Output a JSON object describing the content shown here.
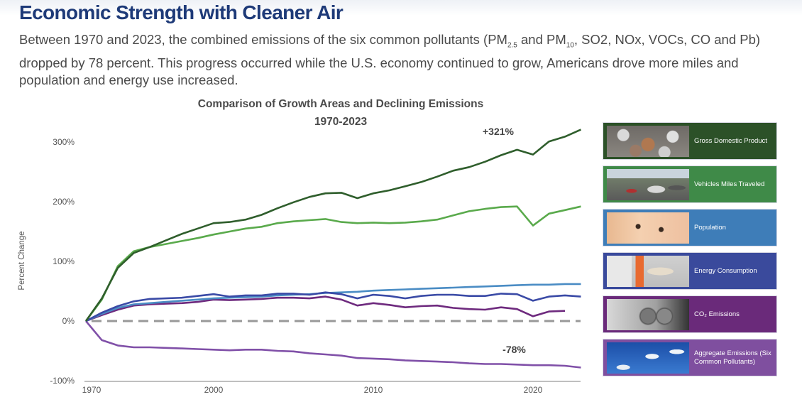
{
  "header": {
    "title": "Economic Strength with Cleaner Air",
    "intro_part1": "Between 1970 and 2023, the combined emissions of the six common pollutants (PM",
    "intro_sub1": "2.5",
    "intro_part2": " and PM",
    "intro_sub2": "10",
    "intro_part3": ", SO2, NOx, VOCs, CO and Pb) dropped by 78 percent. This progress occurred while the U.S. economy continued to grow, Americans drove more miles and population and energy use increased."
  },
  "legend": [
    {
      "label": "Gross Domestic Product",
      "color": "#2c5128",
      "image": "coins-photo"
    },
    {
      "label": "Vehicles Miles Traveled",
      "color": "#3f8a48",
      "image": "traffic-photo"
    },
    {
      "label": "Population",
      "color": "#3e7db8",
      "image": "baby-face-photo"
    },
    {
      "label": "Energy Consumption",
      "color": "#3a4a9c",
      "image": "power-plug-photo"
    },
    {
      "label": "CO₂ Emissions",
      "color": "#6a2a7a",
      "image": "exhaust-pipe-photo"
    },
    {
      "label": "Aggregate Emissions (Six Common Pollutants)",
      "color": "#7f4f9f",
      "image": "smokestacks-photo"
    }
  ],
  "chart_data": {
    "type": "line",
    "title": "Comparison of Growth Areas and Declining Emissions",
    "subtitle": "1970-2023",
    "xlabel": "",
    "ylabel": "Percent Change",
    "ylim": [
      -100,
      300
    ],
    "yticks": [
      "300%",
      "200%",
      "100%",
      "0%",
      "-100%"
    ],
    "ytick_values": [
      300,
      200,
      100,
      0,
      -100
    ],
    "xtick_labels": [
      "1970",
      "2000",
      "2010",
      "2020"
    ],
    "reference_line": {
      "value": 0,
      "style": "dashed"
    },
    "x": [
      "1970",
      "1980",
      "1990",
      "1995",
      "1996",
      "1997",
      "1998",
      "1999",
      "2000",
      "2001",
      "2002",
      "2003",
      "2004",
      "2005",
      "2006",
      "2007",
      "2008",
      "2009",
      "2010",
      "2011",
      "2012",
      "2013",
      "2014",
      "2015",
      "2016",
      "2017",
      "2018",
      "2019",
      "2020",
      "2021",
      "2022",
      "2023"
    ],
    "series": [
      {
        "name": "Gross Domestic Product",
        "color": "#2f5e2c",
        "values": [
          0,
          38,
          89,
          114,
          124,
          135,
          146,
          155,
          164,
          166,
          170,
          178,
          189,
          199,
          208,
          214,
          215,
          206,
          214,
          219,
          226,
          233,
          242,
          252,
          258,
          267,
          278,
          287,
          279,
          301,
          309,
          321
        ]
      },
      {
        "name": "Vehicles Miles Traveled",
        "color": "#5aaa4c",
        "values": [
          0,
          36,
          92,
          117,
          124,
          129,
          134,
          139,
          145,
          150,
          155,
          158,
          164,
          167,
          169,
          171,
          166,
          164,
          165,
          164,
          165,
          167,
          170,
          177,
          184,
          188,
          191,
          192,
          160,
          180,
          186,
          192
        ]
      },
      {
        "name": "Population",
        "color": "#4a8cc4",
        "values": [
          0,
          12,
          22,
          28,
          30,
          32,
          34,
          36,
          38,
          39,
          40,
          41,
          43,
          44,
          45,
          47,
          48,
          49,
          51,
          52,
          53,
          54,
          55,
          56,
          57,
          58,
          59,
          60,
          61,
          61,
          62,
          62
        ]
      },
      {
        "name": "Energy Consumption",
        "color": "#3a4aa6",
        "values": [
          0,
          14,
          25,
          33,
          37,
          38,
          39,
          42,
          45,
          41,
          43,
          43,
          46,
          46,
          44,
          48,
          45,
          38,
          44,
          42,
          38,
          42,
          44,
          44,
          42,
          42,
          46,
          45,
          34,
          41,
          43,
          41
        ]
      },
      {
        "name": "CO2 Emissions",
        "color": "#6e2a7e",
        "values": [
          0,
          10,
          19,
          26,
          28,
          29,
          30,
          32,
          36,
          35,
          36,
          37,
          39,
          39,
          38,
          41,
          36,
          26,
          30,
          27,
          23,
          25,
          26,
          22,
          20,
          19,
          23,
          20,
          8,
          16,
          17,
          null
        ]
      },
      {
        "name": "Aggregate Emissions",
        "color": "#8050a8",
        "values": [
          0,
          -32,
          -41,
          -44,
          -44,
          -45,
          -46,
          -47,
          -48,
          -49,
          -48,
          -48,
          -50,
          -51,
          -54,
          -56,
          -58,
          -62,
          -63,
          -64,
          -66,
          -67,
          -68,
          -69,
          -71,
          -72,
          -72,
          -73,
          -74,
          -74,
          -75,
          -78
        ]
      }
    ],
    "annotations": [
      {
        "text": "+321%",
        "series": "Gross Domestic Product",
        "near_year": "2018"
      },
      {
        "text": "-78%",
        "series": "Aggregate Emissions",
        "near_year": "2019"
      }
    ],
    "legend_position": "right",
    "grid": false
  }
}
